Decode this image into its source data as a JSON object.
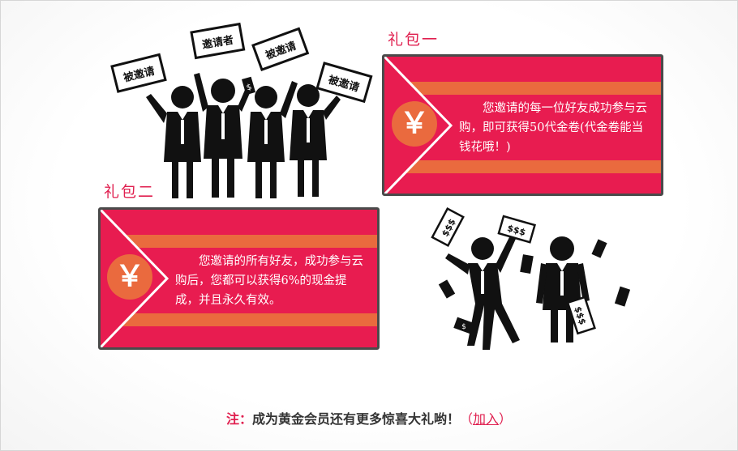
{
  "packages": [
    {
      "title": "礼包一",
      "currency_symbol": "￥",
      "description": "您邀请的每一位好友成功参与云购，即可获得50代金卷(代金卷能当钱花哦！)"
    },
    {
      "title": "礼包二",
      "currency_symbol": "￥",
      "description": "您邀请的所有好友，成功参与云购后，您都可以获得6%的现金提成，并且永久有效。"
    }
  ],
  "illustration_invite": {
    "signs": [
      "被邀请",
      "邀请者",
      "被邀请",
      "被邀请"
    ],
    "envelope_mark": "$"
  },
  "illustration_money": {
    "bill_labels": [
      "$$$",
      "$$$",
      "$$$"
    ],
    "envelope_mark": "$"
  },
  "note": {
    "prefix": "注：",
    "text": "成为黄金会员还有更多惊喜大礼哟！",
    "open_paren": "（",
    "link_label": "加入",
    "close_paren": "）"
  },
  "colors": {
    "accent": "#e01f4f",
    "card": "#e81c50",
    "band": "#ea6a3e",
    "border": "#4a4a4a"
  }
}
